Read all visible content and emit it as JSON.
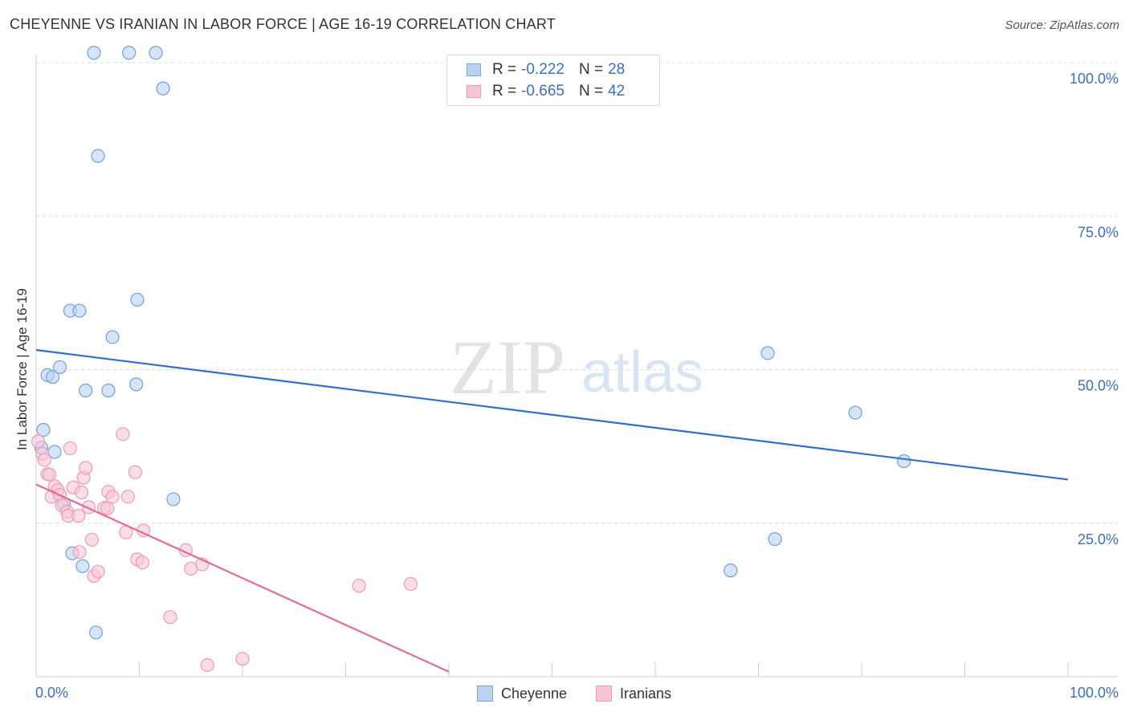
{
  "header": {
    "title": "CHEYENNE VS IRANIAN IN LABOR FORCE | AGE 16-19 CORRELATION CHART",
    "source": "Source: ZipAtlas.com"
  },
  "watermark": {
    "zip": "ZIP",
    "atlas": "atlas"
  },
  "stats": [
    {
      "r_label": "R =",
      "r_value": "-0.222",
      "n_label": "N =",
      "n_value": "28",
      "fill": "#b9d2f2",
      "stroke": "#7aa6e0"
    },
    {
      "r_label": "R =",
      "r_value": "-0.665",
      "n_label": "N =",
      "n_value": "42",
      "fill": "#f7c6d6",
      "stroke": "#ee9ab6"
    }
  ],
  "chart_data": {
    "type": "scatter",
    "title": "CHEYENNE VS IRANIAN IN LABOR FORCE | AGE 16-19 CORRELATION CHART",
    "xlabel": "",
    "ylabel": "In Labor Force | Age 16-19",
    "xlim": [
      0,
      100
    ],
    "ylim": [
      0,
      100
    ],
    "x_tick_labels": [
      {
        "value": 0,
        "label": "0.0%"
      },
      {
        "value": 100,
        "label": "100.0%"
      }
    ],
    "y_tick_labels": [
      {
        "value": 25,
        "label": "25.0%"
      },
      {
        "value": 50,
        "label": "50.0%"
      },
      {
        "value": 75,
        "label": "75.0%"
      },
      {
        "value": 100,
        "label": "100.0%"
      }
    ],
    "grid": true,
    "series": [
      {
        "name": "Cheyenne",
        "color": "#6fa0de",
        "fill": "#b9d2f2",
        "trend": {
          "x": [
            0,
            100
          ],
          "y": [
            53.2,
            32.1
          ],
          "color": "#2f6fd0"
        },
        "points": [
          {
            "x": 5.6,
            "y": 101.6
          },
          {
            "x": 9.0,
            "y": 101.6
          },
          {
            "x": 11.6,
            "y": 101.6
          },
          {
            "x": 12.3,
            "y": 95.8
          },
          {
            "x": 6.0,
            "y": 84.8
          },
          {
            "x": 9.8,
            "y": 61.4
          },
          {
            "x": 3.3,
            "y": 59.6
          },
          {
            "x": 4.2,
            "y": 59.6
          },
          {
            "x": 7.4,
            "y": 55.3
          },
          {
            "x": 1.1,
            "y": 49.1
          },
          {
            "x": 1.6,
            "y": 48.8
          },
          {
            "x": 2.3,
            "y": 50.4
          },
          {
            "x": 4.8,
            "y": 46.6
          },
          {
            "x": 7.0,
            "y": 46.6
          },
          {
            "x": 9.7,
            "y": 47.6
          },
          {
            "x": 0.7,
            "y": 40.2
          },
          {
            "x": 1.8,
            "y": 36.6
          },
          {
            "x": 0.5,
            "y": 37.3
          },
          {
            "x": 2.7,
            "y": 28.1
          },
          {
            "x": 13.3,
            "y": 28.9
          },
          {
            "x": 3.5,
            "y": 20.1
          },
          {
            "x": 4.5,
            "y": 18.0
          },
          {
            "x": 5.8,
            "y": 7.2
          },
          {
            "x": 70.9,
            "y": 52.7
          },
          {
            "x": 79.4,
            "y": 43.0
          },
          {
            "x": 84.1,
            "y": 35.1
          },
          {
            "x": 71.6,
            "y": 22.4
          },
          {
            "x": 67.3,
            "y": 17.3
          }
        ]
      },
      {
        "name": "Iranians",
        "color": "#ee9ab6",
        "fill": "#f7c6d6",
        "trend": {
          "x": [
            0,
            40
          ],
          "y": [
            31.3,
            0.8
          ],
          "color": "#e46a95"
        },
        "points": [
          {
            "x": 0.2,
            "y": 38.3
          },
          {
            "x": 0.6,
            "y": 36.3
          },
          {
            "x": 0.8,
            "y": 35.3
          },
          {
            "x": 1.1,
            "y": 33.0
          },
          {
            "x": 1.3,
            "y": 32.9
          },
          {
            "x": 1.8,
            "y": 31.0
          },
          {
            "x": 2.1,
            "y": 30.4
          },
          {
            "x": 1.5,
            "y": 29.3
          },
          {
            "x": 2.3,
            "y": 29.6
          },
          {
            "x": 2.5,
            "y": 27.9
          },
          {
            "x": 3.0,
            "y": 26.9
          },
          {
            "x": 3.1,
            "y": 26.2
          },
          {
            "x": 3.3,
            "y": 37.2
          },
          {
            "x": 3.6,
            "y": 30.8
          },
          {
            "x": 4.1,
            "y": 26.2
          },
          {
            "x": 4.4,
            "y": 30.0
          },
          {
            "x": 4.6,
            "y": 32.4
          },
          {
            "x": 4.8,
            "y": 34.0
          },
          {
            "x": 5.1,
            "y": 27.6
          },
          {
            "x": 5.4,
            "y": 22.3
          },
          {
            "x": 4.2,
            "y": 20.3
          },
          {
            "x": 5.6,
            "y": 16.4
          },
          {
            "x": 6.0,
            "y": 17.1
          },
          {
            "x": 6.6,
            "y": 27.5
          },
          {
            "x": 6.9,
            "y": 27.4
          },
          {
            "x": 7.0,
            "y": 30.1
          },
          {
            "x": 7.4,
            "y": 29.3
          },
          {
            "x": 8.4,
            "y": 39.5
          },
          {
            "x": 8.9,
            "y": 29.3
          },
          {
            "x": 9.6,
            "y": 33.3
          },
          {
            "x": 8.7,
            "y": 23.5
          },
          {
            "x": 10.4,
            "y": 23.8
          },
          {
            "x": 9.8,
            "y": 19.1
          },
          {
            "x": 10.3,
            "y": 18.6
          },
          {
            "x": 13.0,
            "y": 9.7
          },
          {
            "x": 14.5,
            "y": 20.6
          },
          {
            "x": 15.0,
            "y": 17.6
          },
          {
            "x": 16.1,
            "y": 18.3
          },
          {
            "x": 16.6,
            "y": 1.9
          },
          {
            "x": 20.0,
            "y": 2.9
          },
          {
            "x": 31.3,
            "y": 14.8
          },
          {
            "x": 36.3,
            "y": 15.1
          }
        ]
      }
    ]
  }
}
